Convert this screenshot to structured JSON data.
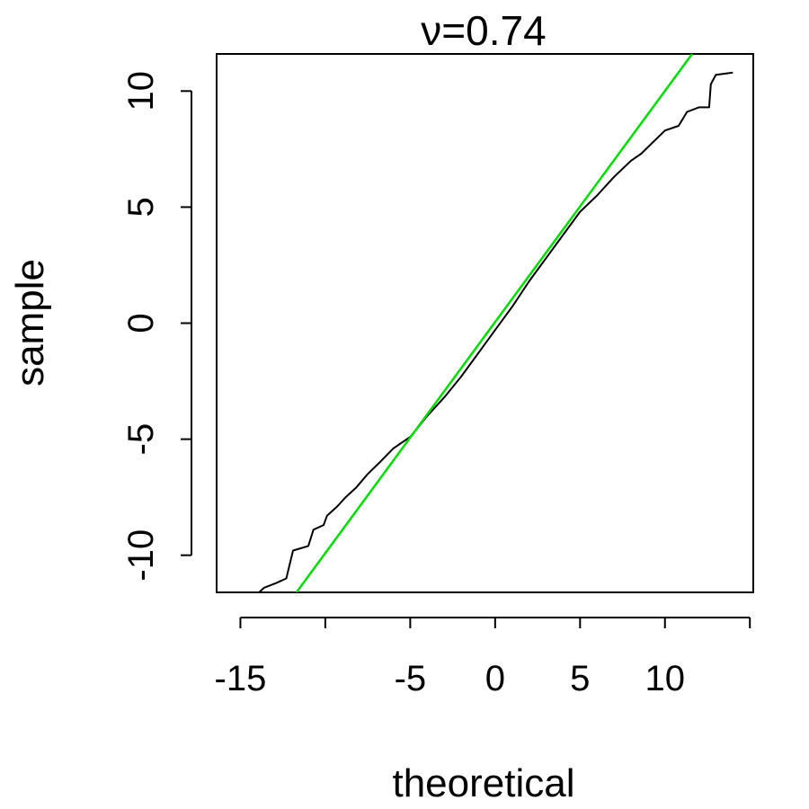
{
  "chart_data": {
    "type": "line",
    "title": "ν=0.74",
    "xlabel": "theoretical",
    "ylabel": "sample",
    "xlim": [
      -16.4,
      15.2
    ],
    "ylim": [
      -11.6,
      11.6
    ],
    "x_ticks": [
      -15,
      -10,
      -5,
      0,
      5,
      10,
      15
    ],
    "x_tick_labels": [
      "-15",
      "",
      "-5",
      "0",
      "5",
      "10",
      ""
    ],
    "y_ticks": [
      -10,
      -5,
      0,
      5,
      10
    ],
    "y_tick_labels": [
      "-10",
      "-5",
      "0",
      "5",
      "10"
    ],
    "grid": false,
    "series": [
      {
        "role": "qq-sample",
        "color": "#000000",
        "points": [
          [
            -13.9,
            -11.6
          ],
          [
            -13.6,
            -11.4
          ],
          [
            -12.9,
            -11.2
          ],
          [
            -12.3,
            -11.0
          ],
          [
            -11.9,
            -9.8
          ],
          [
            -11.0,
            -9.6
          ],
          [
            -10.7,
            -8.9
          ],
          [
            -10.1,
            -8.7
          ],
          [
            -9.9,
            -8.3
          ],
          [
            -9.3,
            -7.9
          ],
          [
            -8.8,
            -7.5
          ],
          [
            -8.2,
            -7.1
          ],
          [
            -7.5,
            -6.5
          ],
          [
            -6.8,
            -6.0
          ],
          [
            -6.0,
            -5.4
          ],
          [
            -5.0,
            -4.9
          ],
          [
            -4.0,
            -4.0
          ],
          [
            -3.0,
            -3.2
          ],
          [
            -2.0,
            -2.3
          ],
          [
            -1.0,
            -1.3
          ],
          [
            0.0,
            -0.3
          ],
          [
            1.0,
            0.7
          ],
          [
            2.0,
            1.8
          ],
          [
            3.0,
            2.8
          ],
          [
            4.0,
            3.8
          ],
          [
            5.0,
            4.8
          ],
          [
            6.0,
            5.5
          ],
          [
            7.0,
            6.3
          ],
          [
            8.0,
            7.0
          ],
          [
            8.6,
            7.3
          ],
          [
            9.3,
            7.8
          ],
          [
            10.0,
            8.3
          ],
          [
            10.8,
            8.5
          ],
          [
            11.3,
            9.1
          ],
          [
            12.0,
            9.3
          ],
          [
            12.6,
            9.3
          ],
          [
            12.7,
            10.3
          ],
          [
            13.0,
            10.7
          ],
          [
            14.0,
            10.8
          ]
        ]
      },
      {
        "role": "reference-line",
        "color": "#00dd00",
        "points": [
          [
            -11.7,
            -11.6
          ],
          [
            11.6,
            11.6
          ]
        ]
      }
    ]
  }
}
